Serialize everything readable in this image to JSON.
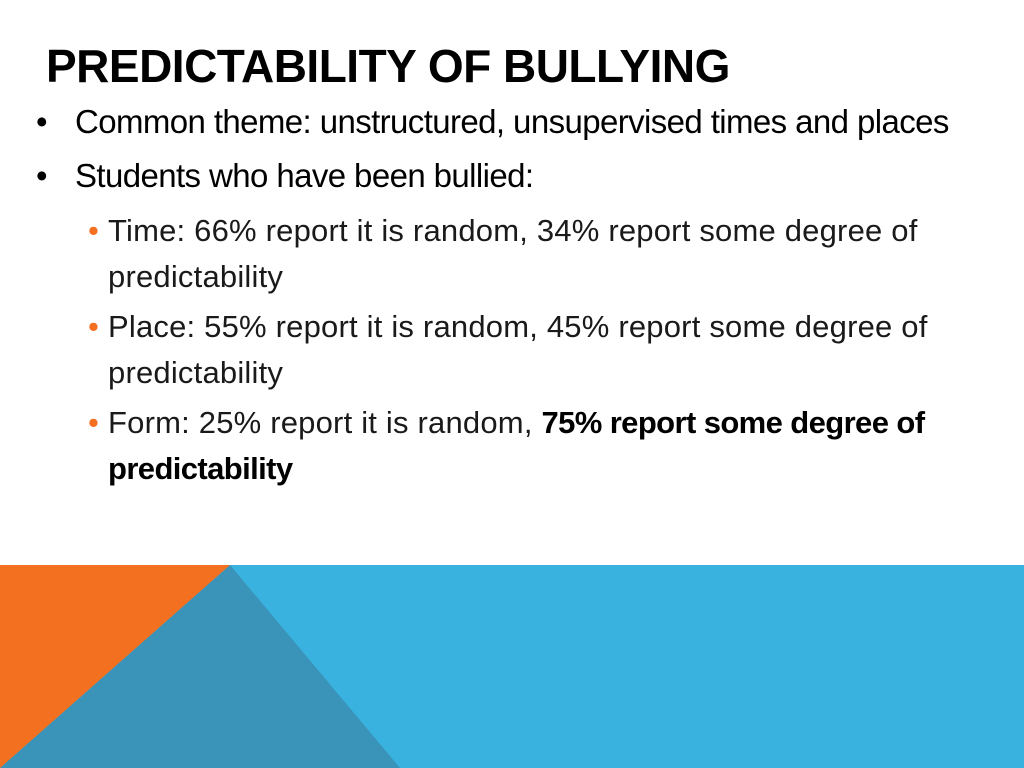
{
  "title": "PREDICTABILITY OF BULLYING",
  "bullets": [
    {
      "marker": "•",
      "text": "Common theme: unstructured, unsupervised times and places"
    },
    {
      "marker": "•",
      "text": "Students who have been bullied:"
    }
  ],
  "sub_bullets": [
    {
      "marker": "•",
      "text": "Time: 66% report it is random, 34% report some degree of predictability"
    },
    {
      "marker": "•",
      "text": "Place: 55% report it is random, 45% report some degree of predictability"
    },
    {
      "marker": "•",
      "text": "Form: 25% report it is random, ",
      "bold_text": "75% report some degree of predictability"
    }
  ],
  "colors": {
    "accent_orange": "#f37021",
    "band_light_blue": "#3ab2df",
    "band_dark_blue": "#3a93b8"
  }
}
